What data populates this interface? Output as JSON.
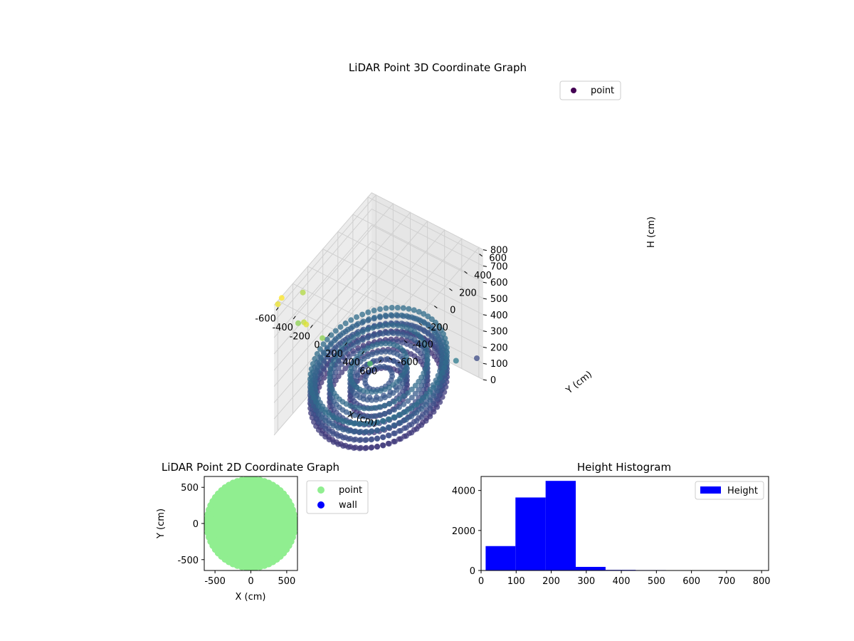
{
  "figure": {
    "background": "#ffffff"
  },
  "chart_data": [
    {
      "type": "scatter",
      "title": "LiDAR Point 3D Coordinate Graph",
      "xlabel": "X (cm)",
      "ylabel": "Y (cm)",
      "zlabel": "H (cm)",
      "xlim": [
        -650,
        650
      ],
      "ylim": [
        -650,
        650
      ],
      "zlim": [
        0,
        800
      ],
      "z_inverted": true,
      "xticks": [
        -600,
        -400,
        -200,
        0,
        200,
        400,
        600
      ],
      "yticks": [
        -600,
        -400,
        -200,
        0,
        200,
        400,
        600
      ],
      "zticks": [
        0,
        100,
        200,
        300,
        400,
        500,
        600,
        700,
        800
      ],
      "colormap": "viridis",
      "legend": {
        "placement": "top-right",
        "entries": [
          {
            "name": "point",
            "color": "#440154"
          }
        ]
      },
      "description_structure": {
        "rings": [
          {
            "radius": 560,
            "h": 150,
            "angle_step_deg": 5
          },
          {
            "radius": 600,
            "h": 220,
            "angle_step_deg": 5
          },
          {
            "radius": 430,
            "h": 200,
            "angle_step_deg": 6
          },
          {
            "radius": 250,
            "h": 180,
            "angle_step_deg": 9
          }
        ],
        "layers_h": [
          100,
          150,
          200,
          250
        ],
        "outliers": [
          {
            "x": -620,
            "y": -300,
            "h": 700
          },
          {
            "x": -640,
            "y": -560,
            "h": 800
          },
          {
            "x": -650,
            "y": -600,
            "h": 780
          },
          {
            "x": -500,
            "y": -500,
            "h": 650
          },
          {
            "x": -380,
            "y": -560,
            "h": 720
          },
          {
            "x": -300,
            "y": -620,
            "h": 760
          },
          {
            "x": -200,
            "y": -520,
            "h": 650
          },
          {
            "x": 250,
            "y": -400,
            "h": 550
          },
          {
            "x": 620,
            "y": 600,
            "h": 150
          },
          {
            "x": 640,
            "y": 300,
            "h": 300
          }
        ]
      }
    },
    {
      "type": "scatter",
      "title": "LiDAR Point 2D Coordinate Graph",
      "xlabel": "X (cm)",
      "ylabel": "Y (cm)",
      "xlim": [
        -650,
        650
      ],
      "ylim": [
        -650,
        650
      ],
      "xticks": [
        -500,
        0,
        500
      ],
      "yticks": [
        -500,
        0,
        500
      ],
      "series": [
        {
          "name": "point",
          "color": "#90ee90"
        },
        {
          "name": "wall",
          "color": "#0000ff"
        }
      ],
      "legend": {
        "placement": "outside-right"
      }
    },
    {
      "type": "bar",
      "title": "Height Histogram",
      "xlabel": "",
      "ylabel": "",
      "xlim": [
        0,
        820
      ],
      "ylim": [
        0,
        4700
      ],
      "xticks": [
        0,
        100,
        200,
        300,
        400,
        500,
        600,
        700,
        800
      ],
      "yticks": [
        0,
        2000,
        4000
      ],
      "bin_edges": [
        13,
        98,
        184,
        270,
        355,
        441,
        527,
        612,
        698,
        784
      ],
      "series": [
        {
          "name": "Height",
          "color": "#0000ff",
          "values": [
            1220,
            3650,
            4480,
            180,
            30,
            20,
            15,
            10,
            5
          ]
        }
      ],
      "legend": {
        "placement": "top-right"
      }
    }
  ]
}
